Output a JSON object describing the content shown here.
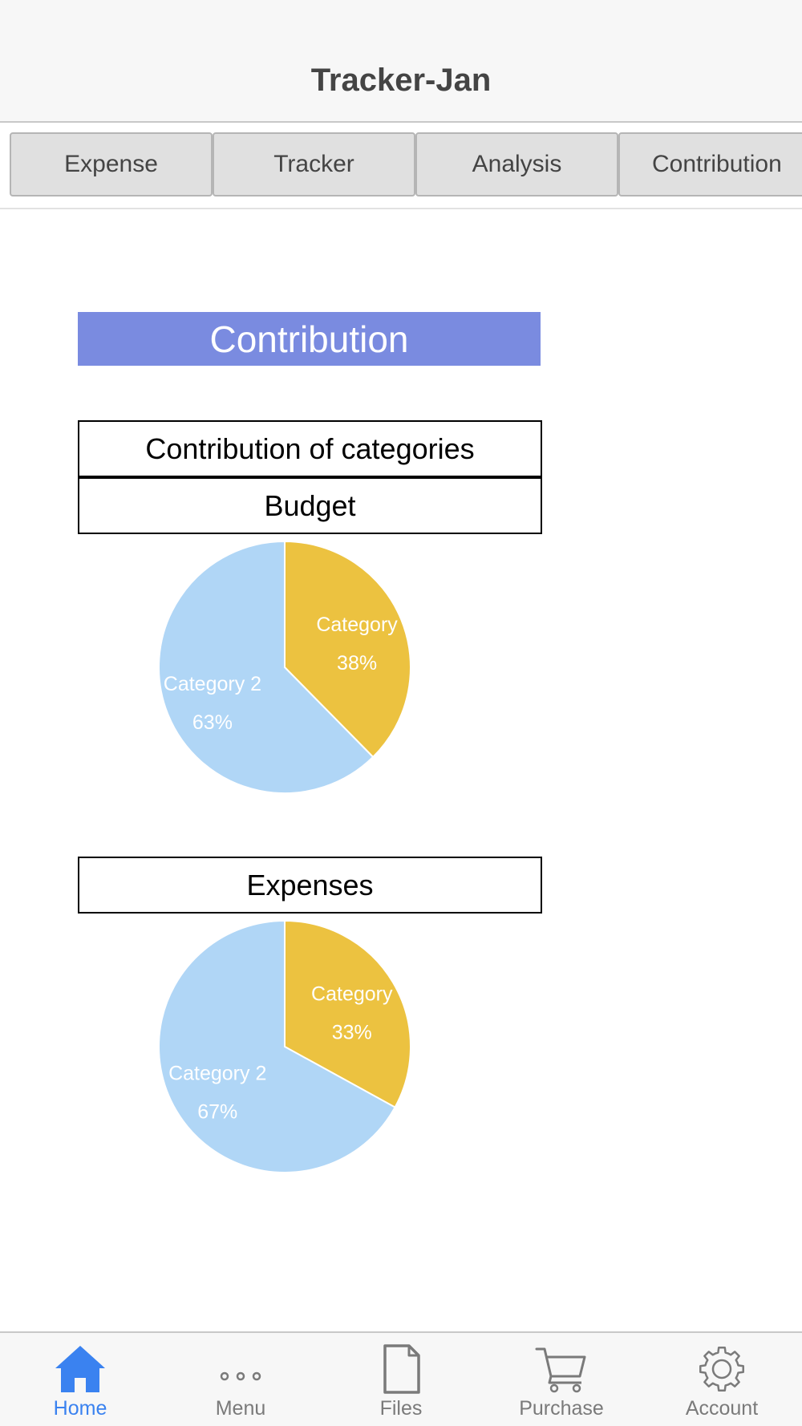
{
  "header": {
    "title": "Tracker-Jan"
  },
  "tabs": [
    {
      "label": "Expense"
    },
    {
      "label": "Tracker"
    },
    {
      "label": "Analysis"
    },
    {
      "label": "Contribution"
    }
  ],
  "banner": {
    "title": "Contribution"
  },
  "section": {
    "title": "Contribution of categories"
  },
  "colors": {
    "category1": "#ecc240",
    "category2": "#b0d6f6",
    "banner": "#7a8be0",
    "active_nav": "#3a82f0"
  },
  "chart_data": [
    {
      "type": "pie",
      "title": "Budget",
      "series": [
        {
          "name": "Category",
          "value": 38,
          "label": "38%"
        },
        {
          "name": "Category 2",
          "value": 63,
          "label": "63%"
        }
      ]
    },
    {
      "type": "pie",
      "title": "Expenses",
      "series": [
        {
          "name": "Category",
          "value": 33,
          "label": "33%"
        },
        {
          "name": "Category 2",
          "value": 67,
          "label": "67%"
        }
      ]
    }
  ],
  "bottom_nav": [
    {
      "label": "Home",
      "icon": "home-icon",
      "active": true
    },
    {
      "label": "Menu",
      "icon": "more-icon",
      "active": false
    },
    {
      "label": "Files",
      "icon": "file-icon",
      "active": false
    },
    {
      "label": "Purchase",
      "icon": "cart-icon",
      "active": false
    },
    {
      "label": "Account",
      "icon": "gear-icon",
      "active": false
    }
  ]
}
